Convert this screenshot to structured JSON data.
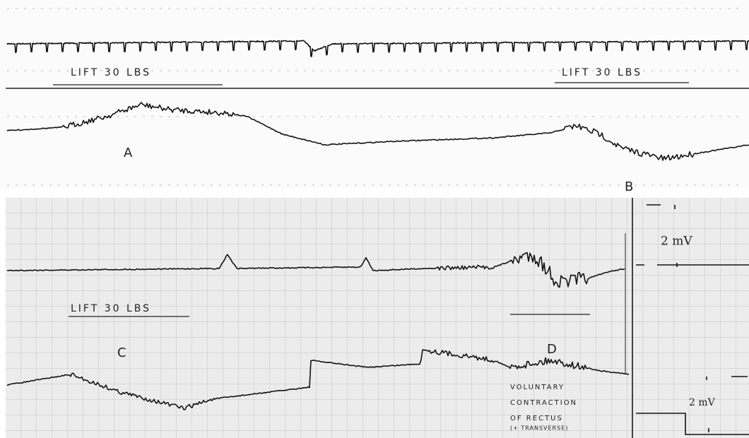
{
  "top_panel": {
    "lift_labels": [
      "LIFT 30 LBS",
      "LIFT 30 LBS"
    ],
    "markers": [
      "A",
      "B"
    ]
  },
  "bottom_panel": {
    "lift_label": "LIFT 30 LBS",
    "markers": [
      "C",
      "D"
    ],
    "annotation": [
      "VOLUNTARY",
      "CONTRACTION",
      "OF RECTUS",
      "(+ TRANSVERSE)"
    ],
    "calibration": [
      "2 mV",
      "2 mV"
    ]
  }
}
